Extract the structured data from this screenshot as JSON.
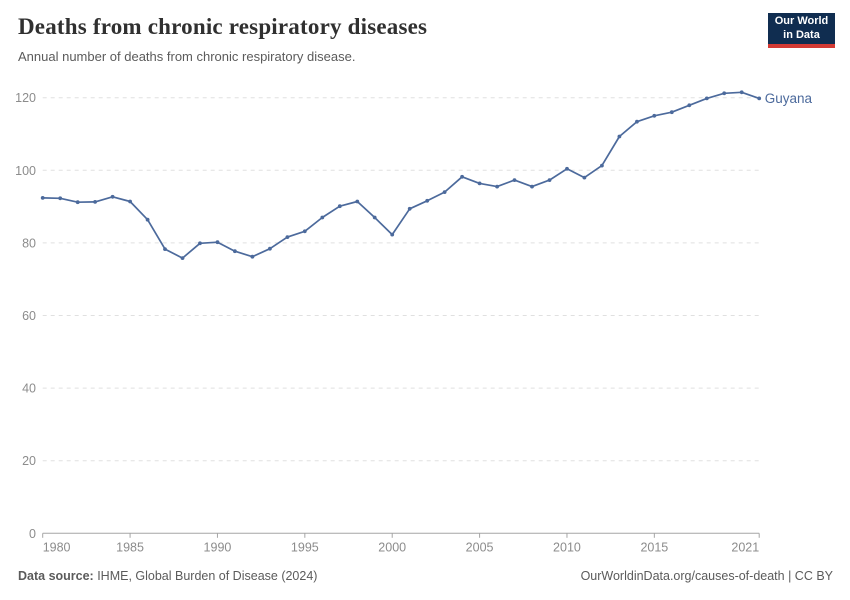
{
  "header": {
    "title": "Deaths from chronic respiratory diseases",
    "subtitle": "Annual number of deaths from chronic respiratory disease.",
    "logo": {
      "line1": "Our World",
      "line2": "in Data",
      "bg": "#102d50",
      "accent": "#d33a34"
    }
  },
  "chart_data": {
    "type": "line",
    "title": "Deaths from chronic respiratory diseases",
    "subtitle": "Annual number of deaths from chronic respiratory disease.",
    "x": [
      1980,
      1981,
      1982,
      1983,
      1984,
      1985,
      1986,
      1987,
      1988,
      1989,
      1990,
      1991,
      1992,
      1993,
      1994,
      1995,
      1996,
      1997,
      1998,
      1999,
      2000,
      2001,
      2002,
      2003,
      2004,
      2005,
      2006,
      2007,
      2008,
      2009,
      2010,
      2011,
      2012,
      2013,
      2014,
      2015,
      2016,
      2017,
      2018,
      2019,
      2020,
      2021
    ],
    "series": [
      {
        "name": "Guyana",
        "color": "#4C6A9C",
        "values": [
          92.4,
          92.3,
          91.2,
          91.3,
          92.7,
          91.4,
          86.4,
          78.3,
          75.8,
          79.9,
          80.2,
          77.7,
          76.2,
          78.4,
          81.6,
          83.2,
          87.0,
          90.1,
          91.4,
          87.0,
          82.3,
          89.4,
          91.6,
          94.0,
          98.2,
          96.4,
          95.5,
          97.3,
          95.5,
          97.3,
          100.4,
          98.0,
          101.3,
          109.3,
          113.4,
          115.0,
          116.0,
          117.9,
          119.8,
          121.2,
          121.5,
          119.8
        ]
      }
    ],
    "xlabel": "",
    "ylabel": "",
    "ylim": [
      0,
      120
    ],
    "yticks": [
      0,
      20,
      40,
      60,
      80,
      100,
      120
    ],
    "xtick_years": [
      1980,
      1985,
      1990,
      1995,
      2000,
      2005,
      2010,
      2015,
      2021
    ],
    "grid": "horizontal-dashed",
    "legend_position": "line-end-label",
    "colors": {
      "line": "#4C6A9C",
      "grid": "#e0e0e0",
      "axis": "#a5a5a5",
      "tick_text": "#8c8c8c"
    }
  },
  "footer": {
    "source_label": "Data source:",
    "source_text": " IHME, Global Burden of Disease (2024)",
    "rights": "OurWorldinData.org/causes-of-death | CC BY"
  }
}
